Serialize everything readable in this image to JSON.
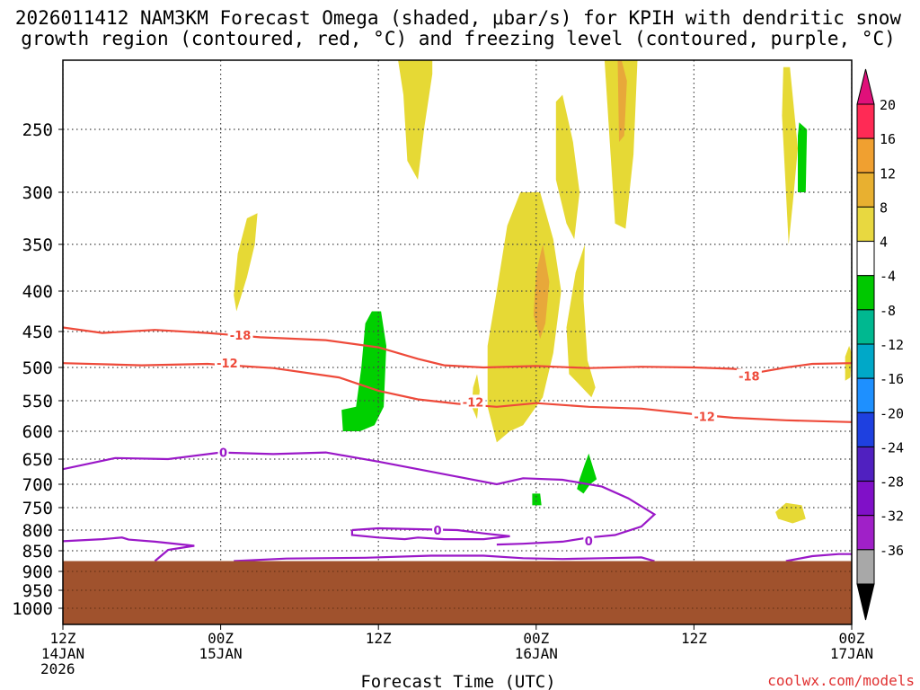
{
  "chart_data": {
    "type": "heatmap",
    "title_line1": "2026011412 NAM3KM Forecast Omega (shaded, μbar/s) for KPIH with dendritic snow",
    "title_line2": "growth region (contoured, red, °C) and freezing level (contoured, purple, °C)",
    "xlabel": "Forecast Time (UTC)",
    "credit": "coolwx.com/models",
    "y_ticks": [
      "250",
      "300",
      "350",
      "400",
      "450",
      "500",
      "550",
      "600",
      "650",
      "700",
      "750",
      "800",
      "850",
      "900",
      "950",
      "1000"
    ],
    "x_ticks": [
      {
        "hour": 0,
        "lines": [
          "12Z",
          "14JAN",
          "2026"
        ]
      },
      {
        "hour": 12,
        "lines": [
          "00Z",
          "15JAN"
        ]
      },
      {
        "hour": 24,
        "lines": [
          "12Z"
        ]
      },
      {
        "hour": 36,
        "lines": [
          "00Z",
          "16JAN"
        ]
      },
      {
        "hour": 48,
        "lines": [
          "12Z"
        ]
      },
      {
        "hour": 60,
        "lines": [
          "00Z",
          "17JAN"
        ]
      }
    ],
    "colorbar": {
      "labels": [
        "20",
        "16",
        "12",
        "8",
        "4",
        "-4",
        "-8",
        "-12",
        "-16",
        "-20",
        "-24",
        "-28",
        "-32",
        "-36"
      ],
      "colors": [
        "#ff2a55",
        "#f0a030",
        "#e8b030",
        "#e8d840",
        "#ffffff",
        "#00c800",
        "#00b890",
        "#00a8c8",
        "#1e90ff",
        "#1e40e0",
        "#5020c0",
        "#8010c8",
        "#a020c8",
        "#a8a8a8"
      ],
      "top_arrow_color": "#e0107a",
      "bottom_arrow_color": "#000000"
    },
    "colors": {
      "frame": "#000000",
      "grid": "#444444",
      "terrain": "#a0522d",
      "dgz_contour": "#ee4a3a",
      "freezing_contour": "#9a18c8",
      "omega_pos_4": "#e6d935",
      "omega_pos_8": "#e8a83a",
      "omega_neg_4": "#00d000"
    },
    "terrain_top_hpa": 875,
    "contour_labels": [
      {
        "text": "-18",
        "hour": 13.5,
        "p": 455,
        "kind": "dgz"
      },
      {
        "text": "-12",
        "hour": 12.5,
        "p": 494,
        "kind": "dgz"
      },
      {
        "text": "-12",
        "hour": 31.2,
        "p": 552,
        "kind": "dgz"
      },
      {
        "text": "-18",
        "hour": 52.2,
        "p": 513,
        "kind": "dgz"
      },
      {
        "text": "-12",
        "hour": 48.8,
        "p": 576,
        "kind": "dgz"
      },
      {
        "text": "0",
        "hour": 12.2,
        "p": 638,
        "kind": "fz"
      },
      {
        "text": "0",
        "hour": 28.5,
        "p": 800,
        "kind": "fz"
      },
      {
        "text": "0",
        "hour": 40,
        "p": 826,
        "kind": "fz"
      }
    ],
    "dgz_contours": [
      {
        "name": "-18",
        "points": [
          [
            0,
            445
          ],
          [
            3,
            452
          ],
          [
            7,
            448
          ],
          [
            11,
            452
          ],
          [
            15,
            458
          ],
          [
            20,
            462
          ],
          [
            24,
            472
          ],
          [
            27,
            488
          ],
          [
            29,
            497
          ],
          [
            32,
            500
          ],
          [
            36,
            498
          ],
          [
            40,
            501
          ],
          [
            44,
            499
          ],
          [
            48,
            500
          ],
          [
            51,
            502
          ],
          [
            53,
            507
          ],
          [
            55,
            500
          ],
          [
            57,
            495
          ],
          [
            60,
            494
          ]
        ]
      },
      {
        "name": "-12",
        "points": [
          [
            0,
            494
          ],
          [
            6,
            497
          ],
          [
            11,
            495
          ],
          [
            16,
            501
          ],
          [
            21,
            515
          ],
          [
            24,
            535
          ],
          [
            27,
            548
          ],
          [
            30,
            555
          ],
          [
            33,
            560
          ],
          [
            36,
            554
          ],
          [
            40,
            560
          ],
          [
            44,
            563
          ],
          [
            48,
            572
          ],
          [
            51,
            578
          ],
          [
            55,
            582
          ],
          [
            60,
            585
          ]
        ]
      }
    ],
    "freezing_contours": [
      {
        "name": "0-upper",
        "points": [
          [
            0,
            670
          ],
          [
            4,
            648
          ],
          [
            8,
            650
          ],
          [
            12,
            638
          ],
          [
            16,
            641
          ],
          [
            20,
            638
          ],
          [
            24,
            655
          ],
          [
            27,
            670
          ],
          [
            30,
            685
          ],
          [
            33,
            700
          ],
          [
            35,
            688
          ],
          [
            38,
            691
          ],
          [
            41,
            705
          ],
          [
            43,
            730
          ],
          [
            45,
            765
          ],
          [
            44,
            792
          ],
          [
            42,
            812
          ],
          [
            40,
            818
          ],
          [
            38,
            828
          ],
          [
            35,
            833
          ],
          [
            33,
            835
          ]
        ]
      },
      {
        "name": "0-lower",
        "points": [
          [
            0,
            827
          ],
          [
            3,
            822
          ],
          [
            4.5,
            818
          ],
          [
            5,
            823
          ],
          [
            7,
            828
          ],
          [
            10,
            838
          ],
          [
            8,
            848
          ],
          [
            7,
            875
          ]
        ]
      },
      {
        "name": "0-small-a",
        "points": [
          [
            22,
            800
          ],
          [
            24,
            796
          ],
          [
            27,
            798
          ],
          [
            30,
            800
          ],
          [
            32,
            808
          ],
          [
            34,
            815
          ],
          [
            32,
            822
          ],
          [
            29,
            822
          ],
          [
            27,
            818
          ],
          [
            26,
            822
          ],
          [
            24,
            818
          ],
          [
            22,
            812
          ],
          [
            22,
            800
          ]
        ]
      },
      {
        "name": "0-right",
        "points": [
          [
            55,
            875
          ],
          [
            57,
            863
          ],
          [
            59,
            858
          ],
          [
            60,
            858
          ]
        ]
      },
      {
        "name": "0-mid-bottom",
        "points": [
          [
            13,
            875
          ],
          [
            17,
            869
          ],
          [
            23,
            867
          ],
          [
            28,
            862
          ],
          [
            32,
            862
          ],
          [
            35,
            868
          ],
          [
            38,
            870
          ],
          [
            41,
            868
          ],
          [
            44,
            866
          ],
          [
            45,
            875
          ]
        ]
      }
    ],
    "omega_regions": [
      {
        "level": "pos4",
        "points": [
          [
            13.2,
            425
          ],
          [
            14,
            385
          ],
          [
            14.6,
            350
          ],
          [
            14.8,
            320
          ],
          [
            14.0,
            325
          ],
          [
            13.3,
            360
          ],
          [
            13.0,
            405
          ]
        ]
      },
      {
        "level": "pos4",
        "points": [
          [
            27.5,
            248
          ],
          [
            28.1,
            210
          ],
          [
            28.1,
            176
          ],
          [
            27.1,
            168
          ],
          [
            26.2,
            168
          ],
          [
            25.5,
            178
          ],
          [
            25.9,
            225
          ],
          [
            26.2,
            275
          ],
          [
            27.0,
            290
          ]
        ]
      },
      {
        "level": "pos4",
        "points": [
          [
            33.8,
            332
          ],
          [
            34.8,
            300
          ],
          [
            36.3,
            300
          ],
          [
            37.3,
            345
          ],
          [
            37.9,
            400
          ],
          [
            37.3,
            480
          ],
          [
            36.5,
            545
          ],
          [
            35.0,
            590
          ],
          [
            34.0,
            600
          ],
          [
            33.0,
            620
          ],
          [
            32.3,
            560
          ],
          [
            32.3,
            470
          ],
          [
            33.0,
            400
          ]
        ]
      },
      {
        "level": "pos8",
        "points": [
          [
            36.0,
            380
          ],
          [
            36.5,
            350
          ],
          [
            37.0,
            390
          ],
          [
            36.7,
            440
          ],
          [
            36.3,
            460
          ],
          [
            35.8,
            430
          ]
        ]
      },
      {
        "level": "pos4",
        "points": [
          [
            37.5,
            230
          ],
          [
            38.0,
            225
          ],
          [
            38.8,
            260
          ],
          [
            39.3,
            300
          ],
          [
            38.9,
            345
          ],
          [
            38.3,
            330
          ],
          [
            37.5,
            290
          ]
        ]
      },
      {
        "level": "pos4",
        "points": [
          [
            38.3,
            445
          ],
          [
            39.0,
            380
          ],
          [
            39.7,
            350
          ],
          [
            39.6,
            410
          ],
          [
            39.9,
            490
          ],
          [
            40.5,
            530
          ],
          [
            40.2,
            545
          ],
          [
            39.0,
            520
          ],
          [
            38.5,
            510
          ]
        ]
      },
      {
        "level": "pos4",
        "points": [
          [
            41.2,
            190
          ],
          [
            41.3,
            155
          ],
          [
            42.2,
            135
          ],
          [
            43.1,
            135
          ],
          [
            43.7,
            200
          ],
          [
            43.4,
            270
          ],
          [
            42.8,
            335
          ],
          [
            42.0,
            330
          ],
          [
            41.6,
            260
          ]
        ]
      },
      {
        "level": "pos8",
        "points": [
          [
            42.2,
            200
          ],
          [
            42.5,
            185
          ],
          [
            42.9,
            215
          ],
          [
            42.7,
            255
          ],
          [
            42.3,
            260
          ]
        ]
      },
      {
        "level": "pos4",
        "points": [
          [
            54.7,
            240
          ],
          [
            54.8,
            205
          ],
          [
            55.3,
            205
          ],
          [
            55.9,
            265
          ],
          [
            55.6,
            300
          ],
          [
            55.2,
            350
          ]
        ]
      },
      {
        "level": "pos4",
        "points": [
          [
            31.5,
            510
          ],
          [
            31.7,
            535
          ],
          [
            31.5,
            580
          ],
          [
            31.1,
            560
          ],
          [
            31.2,
            530
          ]
        ]
      },
      {
        "level": "pos4",
        "points": [
          [
            59.5,
            485
          ],
          [
            59.8,
            470
          ],
          [
            60,
            480
          ],
          [
            59.9,
            515
          ],
          [
            59.5,
            520
          ]
        ]
      },
      {
        "level": "pos4",
        "points": [
          [
            54.2,
            760
          ],
          [
            55,
            740
          ],
          [
            56.2,
            745
          ],
          [
            56.5,
            775
          ],
          [
            55.5,
            785
          ],
          [
            54.4,
            775
          ]
        ]
      },
      {
        "level": "neg4",
        "points": [
          [
            23.0,
            440
          ],
          [
            23.5,
            425
          ],
          [
            24.2,
            425
          ],
          [
            24.6,
            470
          ],
          [
            24.4,
            560
          ],
          [
            23.7,
            590
          ],
          [
            22.6,
            600
          ],
          [
            21.3,
            600
          ],
          [
            21.2,
            565
          ],
          [
            22.3,
            560
          ],
          [
            22.7,
            500
          ]
        ]
      },
      {
        "level": "neg4",
        "points": [
          [
            39.7,
            660
          ],
          [
            40,
            640
          ],
          [
            40.6,
            690
          ],
          [
            40.1,
            700
          ],
          [
            39.6,
            720
          ],
          [
            39.1,
            710
          ],
          [
            39.3,
            690
          ]
        ]
      },
      {
        "level": "neg4",
        "points": [
          [
            35.7,
            720
          ],
          [
            36.3,
            720
          ],
          [
            36.4,
            745
          ],
          [
            35.7,
            745
          ]
        ]
      },
      {
        "level": "neg4",
        "points": [
          [
            55.9,
            255
          ],
          [
            56,
            245
          ],
          [
            56.6,
            250
          ],
          [
            56.5,
            300
          ],
          [
            55.9,
            300
          ]
        ]
      }
    ]
  }
}
